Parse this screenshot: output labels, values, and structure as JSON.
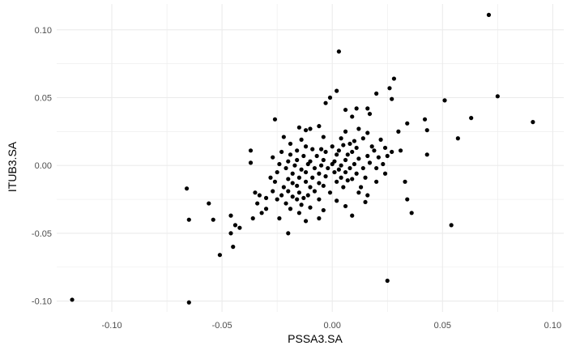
{
  "chart_data": {
    "type": "scatter",
    "title": "",
    "xlabel": "PSSA3.SA",
    "ylabel": "ITUB3.SA",
    "xlim": [
      -0.125,
      0.105
    ],
    "ylim": [
      -0.108,
      0.119
    ],
    "x_ticks": [
      -0.1,
      -0.05,
      0.0,
      0.05,
      0.1
    ],
    "y_ticks": [
      -0.1,
      -0.05,
      0.0,
      0.05,
      0.1
    ],
    "x_tick_labels": [
      "-0.10",
      "-0.05",
      "0.00",
      "0.05",
      "0.10"
    ],
    "y_tick_labels": [
      "-0.10",
      "-0.05",
      "0.00",
      "0.05",
      "0.10"
    ],
    "grid": true,
    "legend": "none",
    "point_color": "#000000",
    "background_color": "#ffffff",
    "grid_color": "#ebebeb",
    "points": [
      [
        0.071,
        0.111
      ],
      [
        0.003,
        0.084
      ],
      [
        0.028,
        0.064
      ],
      [
        0.026,
        0.057
      ],
      [
        0.02,
        0.053
      ],
      [
        0.002,
        0.055
      ],
      [
        0.075,
        0.051
      ],
      [
        -0.001,
        0.05
      ],
      [
        0.051,
        0.048
      ],
      [
        0.027,
        0.049
      ],
      [
        -0.003,
        0.046
      ],
      [
        0.034,
        0.031
      ],
      [
        0.006,
        0.041
      ],
      [
        0.011,
        0.042
      ],
      [
        0.016,
        0.042
      ],
      [
        0.009,
        0.036
      ],
      [
        0.063,
        0.035
      ],
      [
        0.042,
        0.034
      ],
      [
        0.091,
        0.032
      ],
      [
        0.017,
        0.038
      ],
      [
        -0.026,
        0.034
      ],
      [
        -0.006,
        0.029
      ],
      [
        -0.015,
        0.028
      ],
      [
        -0.01,
        0.027
      ],
      [
        -0.012,
        0.026
      ],
      [
        0.006,
        0.025
      ],
      [
        0.012,
        0.027
      ],
      [
        0.016,
        0.024
      ],
      [
        0.03,
        0.025
      ],
      [
        0.043,
        0.026
      ],
      [
        0.057,
        0.02
      ],
      [
        -0.022,
        0.021
      ],
      [
        -0.014,
        0.019
      ],
      [
        -0.004,
        0.021
      ],
      [
        0.004,
        0.02
      ],
      [
        0.01,
        0.018
      ],
      [
        0.014,
        0.02
      ],
      [
        0.022,
        0.019
      ],
      [
        -0.019,
        0.016
      ],
      [
        -0.012,
        0.014
      ],
      [
        -0.005,
        0.012
      ],
      [
        0.0,
        0.014
      ],
      [
        0.005,
        0.015
      ],
      [
        0.008,
        0.016
      ],
      [
        0.011,
        0.013
      ],
      [
        0.018,
        0.014
      ],
      [
        0.024,
        0.013
      ],
      [
        -0.037,
        0.011
      ],
      [
        -0.023,
        0.01
      ],
      [
        -0.016,
        0.011
      ],
      [
        -0.009,
        0.012
      ],
      [
        -0.003,
        0.01
      ],
      [
        0.003,
        0.011
      ],
      [
        0.009,
        0.01
      ],
      [
        0.019,
        0.011
      ],
      [
        0.027,
        0.01
      ],
      [
        0.031,
        0.011
      ],
      [
        -0.027,
        0.006
      ],
      [
        -0.019,
        0.008
      ],
      [
        -0.013,
        0.007
      ],
      [
        -0.007,
        0.007
      ],
      [
        0.002,
        0.008
      ],
      [
        0.007,
        0.008
      ],
      [
        0.016,
        0.007
      ],
      [
        0.025,
        0.007
      ],
      [
        0.043,
        0.008
      ],
      [
        -0.037,
        0.002
      ],
      [
        -0.02,
        0.003
      ],
      [
        -0.016,
        0.004
      ],
      [
        -0.01,
        0.003
      ],
      [
        -0.004,
        0.004
      ],
      [
        0.001,
        0.003
      ],
      [
        0.006,
        0.004
      ],
      [
        0.012,
        0.005
      ],
      [
        0.021,
        0.006
      ],
      [
        -0.024,
        0.001
      ],
      [
        -0.017,
        0.0
      ],
      [
        -0.011,
        0.001
      ],
      [
        -0.005,
        0.0
      ],
      [
        0.0,
        0.001
      ],
      [
        0.004,
        0.0
      ],
      [
        0.01,
        0.001
      ],
      [
        0.017,
        0.002
      ],
      [
        0.023,
        0.001
      ],
      [
        -0.021,
        -0.002
      ],
      [
        -0.014,
        -0.003
      ],
      [
        -0.008,
        -0.002
      ],
      [
        -0.002,
        -0.002
      ],
      [
        0.003,
        -0.003
      ],
      [
        0.008,
        -0.002
      ],
      [
        0.014,
        -0.002
      ],
      [
        0.02,
        -0.002
      ],
      [
        -0.025,
        -0.005
      ],
      [
        -0.018,
        -0.006
      ],
      [
        -0.012,
        -0.005
      ],
      [
        -0.006,
        -0.006
      ],
      [
        0.001,
        -0.005
      ],
      [
        0.006,
        -0.005
      ],
      [
        0.011,
        -0.006
      ],
      [
        0.024,
        -0.006
      ],
      [
        -0.028,
        -0.009
      ],
      [
        -0.02,
        -0.01
      ],
      [
        -0.015,
        -0.009
      ],
      [
        -0.009,
        -0.009
      ],
      [
        -0.003,
        -0.008
      ],
      [
        0.004,
        -0.009
      ],
      [
        0.009,
        -0.01
      ],
      [
        0.015,
        -0.009
      ],
      [
        -0.026,
        -0.012
      ],
      [
        -0.018,
        -0.013
      ],
      [
        -0.012,
        -0.012
      ],
      [
        -0.006,
        -0.013
      ],
      [
        0.002,
        -0.012
      ],
      [
        0.007,
        -0.011
      ],
      [
        0.02,
        -0.012
      ],
      [
        0.033,
        -0.012
      ],
      [
        -0.022,
        -0.016
      ],
      [
        -0.016,
        -0.015
      ],
      [
        -0.01,
        -0.016
      ],
      [
        -0.004,
        -0.015
      ],
      [
        0.005,
        -0.016
      ],
      [
        0.013,
        -0.016
      ],
      [
        -0.035,
        -0.02
      ],
      [
        -0.027,
        -0.019
      ],
      [
        -0.02,
        -0.019
      ],
      [
        -0.015,
        -0.02
      ],
      [
        -0.008,
        -0.019
      ],
      [
        -0.001,
        -0.02
      ],
      [
        0.012,
        -0.02
      ],
      [
        -0.033,
        -0.022
      ],
      [
        -0.023,
        -0.022
      ],
      [
        -0.018,
        -0.023
      ],
      [
        -0.011,
        -0.022
      ],
      [
        0.016,
        -0.022
      ],
      [
        -0.03,
        -0.024
      ],
      [
        -0.025,
        -0.025
      ],
      [
        -0.016,
        -0.025
      ],
      [
        -0.013,
        -0.024
      ],
      [
        -0.006,
        -0.025
      ],
      [
        0.002,
        -0.026
      ],
      [
        0.034,
        -0.025
      ],
      [
        -0.034,
        -0.028
      ],
      [
        -0.021,
        -0.028
      ],
      [
        -0.014,
        -0.029
      ],
      [
        0.015,
        -0.027
      ],
      [
        -0.056,
        -0.028
      ],
      [
        -0.03,
        -0.032
      ],
      [
        -0.019,
        -0.032
      ],
      [
        -0.01,
        -0.031
      ],
      [
        -0.004,
        -0.033
      ],
      [
        0.006,
        -0.03
      ],
      [
        -0.032,
        -0.035
      ],
      [
        -0.015,
        -0.035
      ],
      [
        -0.024,
        -0.039
      ],
      [
        -0.012,
        -0.041
      ],
      [
        -0.006,
        -0.039
      ],
      [
        0.009,
        -0.037
      ],
      [
        0.036,
        -0.035
      ],
      [
        -0.046,
        -0.037
      ],
      [
        -0.065,
        -0.04
      ],
      [
        -0.054,
        -0.04
      ],
      [
        -0.044,
        -0.044
      ],
      [
        -0.042,
        -0.046
      ],
      [
        -0.036,
        -0.039
      ],
      [
        0.054,
        -0.044
      ],
      [
        -0.046,
        -0.05
      ],
      [
        -0.02,
        -0.05
      ],
      [
        -0.045,
        -0.06
      ],
      [
        -0.051,
        -0.066
      ],
      [
        -0.066,
        -0.017
      ],
      [
        0.025,
        -0.085
      ],
      [
        -0.118,
        -0.099
      ],
      [
        -0.065,
        -0.101
      ]
    ]
  }
}
